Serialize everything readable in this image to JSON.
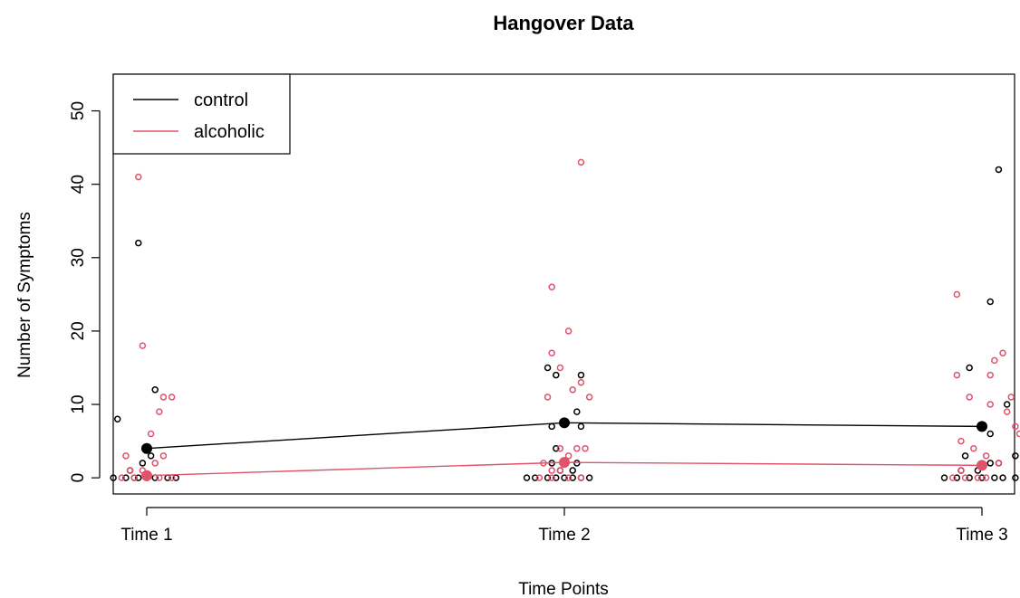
{
  "chart_data": {
    "type": "scatter",
    "title": "Hangover Data",
    "xlabel": "Time Points",
    "ylabel": "Number of Symptoms",
    "categories": [
      "Time 1",
      "Time 2",
      "Time 3"
    ],
    "ylim": [
      -2.2,
      55
    ],
    "yticks": [
      0,
      10,
      20,
      30,
      40,
      50
    ],
    "grid": false,
    "legend_position": "top-left",
    "series": [
      {
        "name": "control",
        "color": "#000000",
        "means": [
          4.0,
          7.5,
          7.0
        ],
        "points": [
          [
            0.92,
            0
          ],
          [
            0.95,
            0
          ],
          [
            0.97,
            0
          ],
          [
            1.0,
            0
          ],
          [
            1.02,
            0
          ],
          [
            1.05,
            0
          ],
          [
            1.07,
            0
          ],
          [
            0.98,
            0
          ],
          [
            0.96,
            1
          ],
          [
            0.99,
            2
          ],
          [
            1.01,
            3
          ],
          [
            0.93,
            8
          ],
          [
            1.02,
            12
          ],
          [
            0.98,
            32
          ],
          [
            1.91,
            0
          ],
          [
            1.93,
            0
          ],
          [
            1.96,
            0
          ],
          [
            1.98,
            0
          ],
          [
            2.0,
            0
          ],
          [
            2.02,
            0
          ],
          [
            2.04,
            0
          ],
          [
            2.06,
            0
          ],
          [
            1.99,
            1
          ],
          [
            2.02,
            1
          ],
          [
            1.97,
            2
          ],
          [
            2.03,
            2
          ],
          [
            1.98,
            4
          ],
          [
            2.04,
            7
          ],
          [
            1.97,
            7
          ],
          [
            2.03,
            9
          ],
          [
            1.98,
            14
          ],
          [
            2.04,
            14
          ],
          [
            1.96,
            15
          ],
          [
            2.91,
            0
          ],
          [
            2.94,
            0
          ],
          [
            2.97,
            0
          ],
          [
            3.0,
            0
          ],
          [
            3.03,
            0
          ],
          [
            3.05,
            0
          ],
          [
            3.08,
            0
          ],
          [
            2.95,
            1
          ],
          [
            2.99,
            1
          ],
          [
            3.02,
            2
          ],
          [
            3.04,
            2
          ],
          [
            2.96,
            3
          ],
          [
            3.08,
            3
          ],
          [
            3.02,
            6
          ],
          [
            3.06,
            10
          ],
          [
            2.97,
            15
          ],
          [
            3.02,
            24
          ],
          [
            3.04,
            42
          ]
        ]
      },
      {
        "name": "alcoholic",
        "color": "#df536b",
        "means": [
          0.3,
          2.1,
          1.7
        ],
        "points": [
          [
            0.94,
            0
          ],
          [
            0.97,
            0
          ],
          [
            1.0,
            0
          ],
          [
            1.03,
            0
          ],
          [
            1.06,
            0
          ],
          [
            0.96,
            1
          ],
          [
            0.99,
            1
          ],
          [
            1.02,
            2
          ],
          [
            0.95,
            3
          ],
          [
            1.04,
            3
          ],
          [
            1.01,
            6
          ],
          [
            1.03,
            9
          ],
          [
            1.04,
            11
          ],
          [
            1.06,
            11
          ],
          [
            0.99,
            18
          ],
          [
            0.98,
            41
          ],
          [
            1.94,
            0
          ],
          [
            1.97,
            0
          ],
          [
            2.01,
            0
          ],
          [
            2.04,
            0
          ],
          [
            1.97,
            1
          ],
          [
            1.99,
            1
          ],
          [
            1.95,
            2
          ],
          [
            2.01,
            3
          ],
          [
            2.03,
            4
          ],
          [
            2.05,
            4
          ],
          [
            1.99,
            4
          ],
          [
            1.96,
            11
          ],
          [
            2.06,
            11
          ],
          [
            2.02,
            12
          ],
          [
            2.04,
            13
          ],
          [
            1.99,
            15
          ],
          [
            1.97,
            17
          ],
          [
            2.01,
            20
          ],
          [
            1.97,
            26
          ],
          [
            2.04,
            43
          ],
          [
            2.93,
            0
          ],
          [
            2.96,
            0
          ],
          [
            2.99,
            0
          ],
          [
            3.01,
            0
          ],
          [
            2.95,
            1
          ],
          [
            3.04,
            2
          ],
          [
            3.01,
            3
          ],
          [
            2.98,
            4
          ],
          [
            2.95,
            5
          ],
          [
            3.09,
            6
          ],
          [
            3.08,
            7
          ],
          [
            3.06,
            9
          ],
          [
            3.02,
            10
          ],
          [
            2.97,
            11
          ],
          [
            3.07,
            11
          ],
          [
            2.94,
            14
          ],
          [
            3.02,
            14
          ],
          [
            3.03,
            16
          ],
          [
            3.05,
            17
          ],
          [
            2.94,
            25
          ]
        ]
      }
    ]
  }
}
